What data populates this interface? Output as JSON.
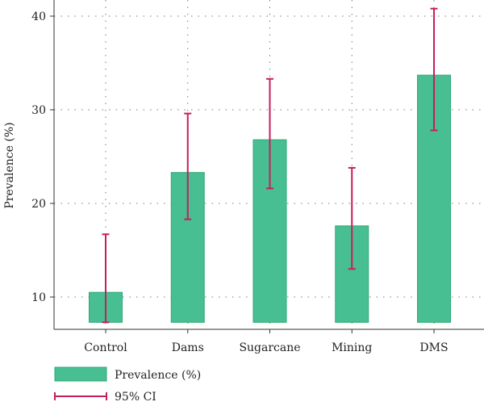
{
  "chart_data": {
    "type": "bar",
    "categories": [
      "Control",
      "Dams",
      "Sugarcane",
      "Mining",
      "DMS"
    ],
    "series": [
      {
        "name": "Prevalence (%)",
        "values": [
          10.5,
          23.3,
          26.8,
          17.6,
          33.7
        ]
      }
    ],
    "error_bars": {
      "name": "95% CI",
      "lower": [
        7.3,
        18.3,
        21.6,
        13.0,
        27.8
      ],
      "upper": [
        16.7,
        29.6,
        33.3,
        23.8,
        40.8
      ]
    },
    "ylabel": "Prevalence (%)",
    "xlabel": "",
    "yticks": [
      10,
      20,
      30,
      40
    ],
    "ylim": [
      7.3,
      42
    ],
    "bar_base": 7.3,
    "grid": true,
    "legend_position": "bottom-left",
    "colors": {
      "bar_fill": "#47bf92",
      "bar_edge": "#2fa877",
      "error_bar": "#c81e5e"
    }
  }
}
